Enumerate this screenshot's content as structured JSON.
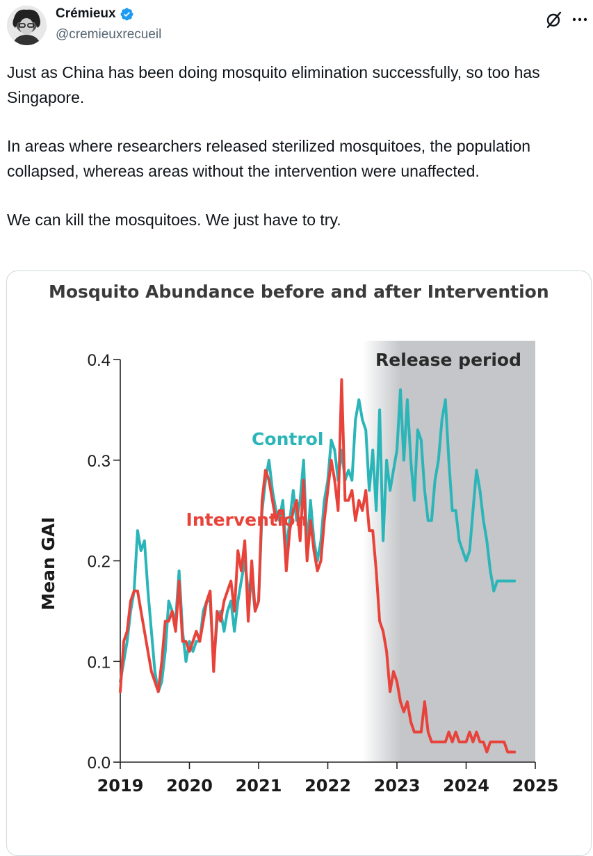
{
  "author": {
    "display_name": "Crémieux",
    "handle": "@cremieuxrecueil",
    "verified": true
  },
  "tweet": {
    "paragraphs": [
      "Just as China has been doing mosquito elimination successfully, so too has Singapore.",
      "In areas where researchers released sterilized mosquitoes, the population collapsed, whereas areas without the intervention were unaffected.",
      "We can kill the mosquitoes. We just have to try."
    ]
  },
  "icons": {
    "grok": "grok-icon",
    "more": "more-horizontal-icon",
    "verified": "verified-badge-icon"
  },
  "colors": {
    "control": "#2bb5b8",
    "intervention": "#e8433a",
    "release_shade": "#c4c6c9",
    "verified": "#1d9bf0"
  },
  "chart_data": {
    "type": "line",
    "title": "Mosquito Abundance before and after Intervention",
    "xlabel": "",
    "ylabel": "Mean GAI",
    "xlim": [
      2019,
      2025
    ],
    "ylim": [
      0,
      0.4
    ],
    "x_ticks": [
      "2019",
      "2020",
      "2021",
      "2022",
      "2023",
      "2024",
      "2025"
    ],
    "y_ticks": [
      "0.0",
      "0.1",
      "0.2",
      "0.3",
      "0.4"
    ],
    "grid": false,
    "shaded_region": {
      "label": "Release period",
      "x_start": 2022.5,
      "x_end": 2025
    },
    "series": [
      {
        "name": "Control",
        "color": "#2bb5b8",
        "x": [
          2019.0,
          2019.05,
          2019.1,
          2019.15,
          2019.2,
          2019.25,
          2019.3,
          2019.35,
          2019.4,
          2019.45,
          2019.5,
          2019.55,
          2019.6,
          2019.65,
          2019.7,
          2019.75,
          2019.8,
          2019.85,
          2019.9,
          2019.95,
          2020.0,
          2020.05,
          2020.1,
          2020.15,
          2020.2,
          2020.25,
          2020.3,
          2020.35,
          2020.4,
          2020.45,
          2020.5,
          2020.55,
          2020.6,
          2020.65,
          2020.7,
          2020.75,
          2020.8,
          2020.85,
          2020.9,
          2020.95,
          2021.0,
          2021.05,
          2021.1,
          2021.15,
          2021.2,
          2021.25,
          2021.3,
          2021.35,
          2021.4,
          2021.45,
          2021.5,
          2021.55,
          2021.6,
          2021.65,
          2021.7,
          2021.75,
          2021.8,
          2021.85,
          2021.9,
          2021.95,
          2022.0,
          2022.05,
          2022.1,
          2022.15,
          2022.2,
          2022.25,
          2022.3,
          2022.35,
          2022.4,
          2022.45,
          2022.5,
          2022.55,
          2022.6,
          2022.65,
          2022.7,
          2022.75,
          2022.8,
          2022.85,
          2022.9,
          2022.95,
          2023.0,
          2023.05,
          2023.1,
          2023.15,
          2023.2,
          2023.25,
          2023.3,
          2023.35,
          2023.4,
          2023.45,
          2023.5,
          2023.55,
          2023.6,
          2023.65,
          2023.7,
          2023.75,
          2023.8,
          2023.85,
          2023.9,
          2023.95,
          2024.0,
          2024.05,
          2024.1,
          2024.15,
          2024.2,
          2024.25,
          2024.3,
          2024.35,
          2024.4,
          2024.45,
          2024.5,
          2024.55,
          2024.6,
          2024.65,
          2024.7
        ],
        "values": [
          0.08,
          0.1,
          0.12,
          0.15,
          0.17,
          0.23,
          0.21,
          0.22,
          0.17,
          0.13,
          0.09,
          0.07,
          0.08,
          0.11,
          0.16,
          0.15,
          0.14,
          0.19,
          0.13,
          0.1,
          0.12,
          0.11,
          0.12,
          0.12,
          0.15,
          0.16,
          0.16,
          0.1,
          0.14,
          0.15,
          0.13,
          0.15,
          0.16,
          0.13,
          0.16,
          0.18,
          0.2,
          0.17,
          0.18,
          0.15,
          0.16,
          0.25,
          0.28,
          0.3,
          0.27,
          0.25,
          0.24,
          0.26,
          0.21,
          0.24,
          0.27,
          0.24,
          0.26,
          0.3,
          0.21,
          0.26,
          0.22,
          0.2,
          0.22,
          0.26,
          0.28,
          0.32,
          0.31,
          0.28,
          0.31,
          0.28,
          0.29,
          0.28,
          0.34,
          0.36,
          0.34,
          0.33,
          0.27,
          0.31,
          0.25,
          0.35,
          0.22,
          0.3,
          0.27,
          0.29,
          0.31,
          0.37,
          0.3,
          0.36,
          0.3,
          0.26,
          0.33,
          0.32,
          0.27,
          0.24,
          0.24,
          0.28,
          0.3,
          0.34,
          0.36,
          0.3,
          0.25,
          0.25,
          0.22,
          0.21,
          0.2,
          0.21,
          0.25,
          0.29,
          0.27,
          0.24,
          0.22,
          0.19,
          0.17,
          0.18,
          0.18,
          0.18,
          0.18,
          0.18,
          0.18
        ],
        "label_at": [
          2020.9,
          0.315
        ]
      },
      {
        "name": "Intervention",
        "color": "#e8433a",
        "x": [
          2019.0,
          2019.05,
          2019.1,
          2019.15,
          2019.2,
          2019.25,
          2019.3,
          2019.35,
          2019.4,
          2019.45,
          2019.5,
          2019.55,
          2019.6,
          2019.65,
          2019.7,
          2019.75,
          2019.8,
          2019.85,
          2019.9,
          2019.95,
          2020.0,
          2020.05,
          2020.1,
          2020.15,
          2020.2,
          2020.25,
          2020.3,
          2020.35,
          2020.4,
          2020.45,
          2020.5,
          2020.55,
          2020.6,
          2020.65,
          2020.7,
          2020.75,
          2020.8,
          2020.85,
          2020.9,
          2020.95,
          2021.0,
          2021.05,
          2021.1,
          2021.15,
          2021.2,
          2021.25,
          2021.3,
          2021.35,
          2021.4,
          2021.45,
          2021.5,
          2021.55,
          2021.6,
          2021.65,
          2021.7,
          2021.75,
          2021.8,
          2021.85,
          2021.9,
          2021.95,
          2022.0,
          2022.05,
          2022.1,
          2022.15,
          2022.2,
          2022.25,
          2022.3,
          2022.35,
          2022.4,
          2022.45,
          2022.5,
          2022.55,
          2022.6,
          2022.65,
          2022.7,
          2022.75,
          2022.8,
          2022.85,
          2022.9,
          2022.95,
          2023.0,
          2023.05,
          2023.1,
          2023.15,
          2023.2,
          2023.25,
          2023.3,
          2023.35,
          2023.4,
          2023.45,
          2023.5,
          2023.55,
          2023.6,
          2023.65,
          2023.7,
          2023.75,
          2023.8,
          2023.85,
          2023.9,
          2023.95,
          2024.0,
          2024.05,
          2024.1,
          2024.15,
          2024.2,
          2024.25,
          2024.3,
          2024.35,
          2024.4,
          2024.45,
          2024.5,
          2024.55,
          2024.6,
          2024.65,
          2024.7
        ],
        "values": [
          0.07,
          0.12,
          0.13,
          0.16,
          0.17,
          0.17,
          0.15,
          0.13,
          0.11,
          0.09,
          0.08,
          0.07,
          0.1,
          0.14,
          0.14,
          0.15,
          0.13,
          0.18,
          0.12,
          0.12,
          0.11,
          0.12,
          0.13,
          0.12,
          0.14,
          0.16,
          0.17,
          0.09,
          0.15,
          0.14,
          0.16,
          0.17,
          0.18,
          0.15,
          0.21,
          0.19,
          0.22,
          0.14,
          0.2,
          0.15,
          0.16,
          0.26,
          0.29,
          0.28,
          0.26,
          0.24,
          0.25,
          0.25,
          0.19,
          0.23,
          0.25,
          0.26,
          0.22,
          0.28,
          0.2,
          0.24,
          0.21,
          0.19,
          0.2,
          0.24,
          0.27,
          0.3,
          0.28,
          0.25,
          0.38,
          0.26,
          0.26,
          0.27,
          0.24,
          0.26,
          0.25,
          0.27,
          0.23,
          0.23,
          0.19,
          0.14,
          0.13,
          0.11,
          0.07,
          0.09,
          0.08,
          0.06,
          0.05,
          0.06,
          0.04,
          0.03,
          0.03,
          0.03,
          0.06,
          0.03,
          0.02,
          0.02,
          0.02,
          0.02,
          0.02,
          0.03,
          0.02,
          0.03,
          0.02,
          0.02,
          0.02,
          0.03,
          0.02,
          0.03,
          0.02,
          0.02,
          0.01,
          0.02,
          0.02,
          0.02,
          0.02,
          0.02,
          0.01,
          0.01,
          0.01
        ],
        "label_at": [
          2019.95,
          0.235
        ]
      }
    ]
  }
}
